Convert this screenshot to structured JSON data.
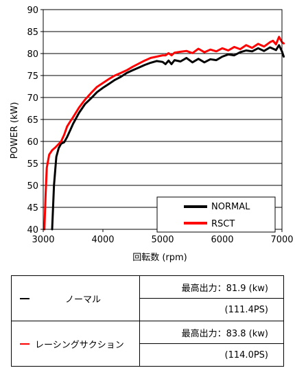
{
  "chart_data": {
    "type": "line",
    "xlabel": "回転数 (rpm)",
    "ylabel": "POWER (kW)",
    "xlim": [
      3000,
      7000
    ],
    "ylim": [
      40,
      90
    ],
    "x_ticks": [
      "3000",
      "4000",
      "5000",
      "6000",
      "7000"
    ],
    "y_ticks": [
      "40",
      "45",
      "50",
      "55",
      "60",
      "65",
      "70",
      "75",
      "80",
      "85",
      "90"
    ],
    "grid": "horizontal",
    "legend_position": "bottom-right",
    "series": [
      {
        "name": "NORMAL",
        "color": "#000000",
        "x": [
          3150,
          3180,
          3220,
          3260,
          3300,
          3350,
          3400,
          3450,
          3500,
          3600,
          3700,
          3800,
          3900,
          4000,
          4100,
          4200,
          4300,
          4400,
          4500,
          4600,
          4700,
          4800,
          4900,
          5000,
          5050,
          5100,
          5150,
          5200,
          5300,
          5400,
          5500,
          5600,
          5700,
          5800,
          5900,
          6000,
          6100,
          6200,
          6300,
          6400,
          6500,
          6600,
          6700,
          6800,
          6900,
          6950,
          7000,
          7030
        ],
        "y": [
          40,
          50,
          56.5,
          58.5,
          59.5,
          59.8,
          61,
          62.5,
          64,
          66.5,
          68.5,
          69.8,
          71.2,
          72.2,
          73.1,
          74,
          74.7,
          75.6,
          76.2,
          76.8,
          77.4,
          77.9,
          78.3,
          78.1,
          77.6,
          78.4,
          77.6,
          78.5,
          78.2,
          79,
          78,
          78.8,
          78,
          78.7,
          78.5,
          79.3,
          79.8,
          79.6,
          80.3,
          80.7,
          80.5,
          81.2,
          80.6,
          81.4,
          80.8,
          81.9,
          80.5,
          79.3
        ]
      },
      {
        "name": "RSCT",
        "color": "#ff0000",
        "x": [
          3020,
          3040,
          3060,
          3100,
          3150,
          3200,
          3250,
          3300,
          3350,
          3400,
          3450,
          3500,
          3600,
          3700,
          3800,
          3900,
          4000,
          4100,
          4200,
          4300,
          4400,
          4500,
          4600,
          4700,
          4800,
          4900,
          5000,
          5050,
          5100,
          5150,
          5200,
          5300,
          5400,
          5500,
          5600,
          5700,
          5800,
          5900,
          6000,
          6100,
          6200,
          6300,
          6400,
          6500,
          6600,
          6700,
          6800,
          6850,
          6900,
          6950,
          7000,
          7030
        ],
        "y": [
          40,
          48,
          54,
          57,
          58,
          58.6,
          59.3,
          60,
          61.5,
          63.4,
          64.5,
          65.5,
          67.7,
          69.5,
          71,
          72.4,
          73.3,
          74.2,
          75,
          75.6,
          76.2,
          77,
          77.7,
          78.4,
          79,
          79.3,
          79.6,
          79.6,
          80.1,
          79.6,
          80.2,
          80.4,
          80.6,
          80.1,
          81.1,
          80.3,
          80.9,
          80.5,
          81.2,
          80.7,
          81.5,
          81,
          81.9,
          81.3,
          82.2,
          81.6,
          82.6,
          82.9,
          82.1,
          83.8,
          82.6,
          82.3
        ]
      }
    ]
  },
  "summary": {
    "rows": [
      {
        "series_name": "ノーマル",
        "color": "#000000",
        "max_label": "最高出力：81.9 (kw)",
        "ps": "(111.4PS)"
      },
      {
        "series_name": "レーシングサクション",
        "color": "#ff0000",
        "max_label": "最高出力：83.8 (kw)",
        "ps": "(114.0PS)"
      }
    ]
  }
}
